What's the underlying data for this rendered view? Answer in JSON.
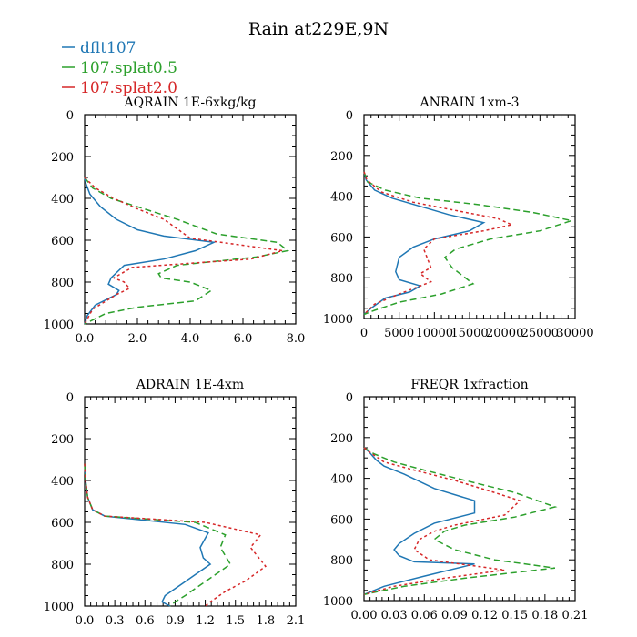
{
  "figure": {
    "title": "Rain at229E,9N"
  },
  "legend": [
    {
      "label": "dflt107",
      "color": "#1f77b4",
      "dash": "solid"
    },
    {
      "label": "107.splat0.5",
      "color": "#2ca02c",
      "dash": "dashed"
    },
    {
      "label": "107.splat2.0",
      "color": "#d62728",
      "dash": "dotted"
    }
  ],
  "chart_data": [
    {
      "type": "line",
      "title": "AQRAIN  1E-6xkg/kg",
      "xlim": [
        0,
        8
      ],
      "ylim": [
        0,
        1000
      ],
      "xticks": [
        0,
        2,
        4,
        6,
        8
      ],
      "xtick_labels": [
        "0.0",
        "2.0",
        "4.0",
        "6.0",
        "8.0"
      ],
      "yticks": [
        0,
        200,
        400,
        600,
        800,
        1000
      ],
      "ytick_labels": [
        "0",
        "200",
        "400",
        "600",
        "800",
        "1000"
      ],
      "series": [
        {
          "name": "dflt107",
          "x": [
            0,
            0.05,
            0.2,
            0.6,
            1.2,
            2.0,
            3.0,
            4.9,
            4.2,
            3.0,
            1.5,
            1.0,
            0.9,
            1.3,
            1.2,
            0.4,
            0.1,
            0
          ],
          "y": [
            300,
            330,
            380,
            440,
            500,
            550,
            580,
            610,
            650,
            690,
            720,
            780,
            810,
            840,
            860,
            910,
            960,
            1000
          ]
        },
        {
          "name": "107.splat0.5",
          "x": [
            0,
            0.3,
            1.0,
            2.0,
            3.5,
            5.0,
            7.3,
            7.7,
            6.5,
            3.5,
            2.8,
            2.9,
            4.0,
            4.8,
            4.2,
            2.0,
            0.8,
            0
          ],
          "y": [
            300,
            350,
            400,
            440,
            500,
            570,
            610,
            650,
            680,
            720,
            760,
            780,
            800,
            840,
            890,
            920,
            950,
            1000
          ]
        },
        {
          "name": "107.splat2.0",
          "x": [
            0,
            0.4,
            1.1,
            2.0,
            3.0,
            4.0,
            7.5,
            6.3,
            4.0,
            1.8,
            1.1,
            1.5,
            1.7,
            1.2,
            0.3,
            0
          ],
          "y": [
            300,
            350,
            400,
            450,
            500,
            590,
            650,
            690,
            710,
            730,
            780,
            800,
            830,
            860,
            930,
            1000
          ]
        }
      ]
    },
    {
      "type": "line",
      "title": "ANRAIN  1xm-3",
      "xlim": [
        0,
        30000
      ],
      "ylim": [
        0,
        1000
      ],
      "xticks": [
        0,
        5000,
        10000,
        15000,
        20000,
        25000,
        30000
      ],
      "xtick_labels": [
        "0",
        "5000",
        "10000",
        "15000",
        "20000",
        "25000",
        "30000"
      ],
      "yticks": [
        0,
        200,
        400,
        600,
        800,
        1000
      ],
      "ytick_labels": [
        "0",
        "200",
        "400",
        "600",
        "800",
        "1000"
      ],
      "series": [
        {
          "name": "dflt107",
          "x": [
            0,
            300,
            1500,
            4000,
            8000,
            12000,
            17000,
            15000,
            10000,
            7000,
            5000,
            4500,
            5000,
            8000,
            6500,
            3000,
            1000,
            0
          ],
          "y": [
            280,
            320,
            370,
            410,
            450,
            490,
            530,
            570,
            610,
            650,
            700,
            770,
            810,
            840,
            870,
            900,
            950,
            980
          ]
        },
        {
          "name": "107.splat0.5",
          "x": [
            0,
            500,
            3000,
            8000,
            16000,
            24000,
            29500,
            25000,
            18000,
            13000,
            11500,
            12500,
            15500,
            11000,
            5000,
            1500,
            0
          ],
          "y": [
            280,
            330,
            370,
            410,
            440,
            480,
            520,
            570,
            610,
            660,
            700,
            750,
            830,
            880,
            920,
            960,
            980
          ]
        },
        {
          "name": "107.splat2.0",
          "x": [
            0,
            400,
            2500,
            7000,
            13000,
            19000,
            21000,
            17000,
            10000,
            8500,
            9500,
            8000,
            9500,
            5000,
            1500,
            0
          ],
          "y": [
            280,
            320,
            380,
            430,
            470,
            510,
            540,
            570,
            610,
            660,
            750,
            780,
            820,
            880,
            930,
            980
          ]
        }
      ]
    },
    {
      "type": "line",
      "title": "ADRAIN  1E-4xm",
      "xlim": [
        0,
        2.1
      ],
      "ylim": [
        0,
        1000
      ],
      "xticks": [
        0,
        0.3,
        0.6,
        0.9,
        1.2,
        1.5,
        1.8,
        2.1
      ],
      "xtick_labels": [
        "0.0",
        "0.3",
        "0.6",
        "0.9",
        "1.2",
        "1.5",
        "1.8",
        "2.1"
      ],
      "yticks": [
        0,
        200,
        400,
        600,
        800,
        1000
      ],
      "ytick_labels": [
        "0",
        "200",
        "400",
        "600",
        "800",
        "1000"
      ],
      "series": [
        {
          "name": "dflt107",
          "x": [
            0,
            0.01,
            0.03,
            0.08,
            0.2,
            1.0,
            1.23,
            1.15,
            1.18,
            1.25,
            1.1,
            0.95,
            0.8,
            0.77,
            0.85
          ],
          "y": [
            320,
            400,
            480,
            540,
            570,
            610,
            650,
            720,
            770,
            800,
            850,
            900,
            950,
            980,
            1000
          ]
        },
        {
          "name": "107.splat0.5",
          "x": [
            0,
            0.01,
            0.03,
            0.08,
            0.2,
            1.1,
            1.4,
            1.35,
            1.45,
            1.3,
            1.15,
            1.0,
            0.9,
            0.85
          ],
          "y": [
            320,
            400,
            480,
            540,
            570,
            600,
            660,
            720,
            800,
            850,
            900,
            950,
            980,
            1000
          ]
        },
        {
          "name": "107.splat2.0",
          "x": [
            0,
            0.01,
            0.03,
            0.08,
            0.2,
            1.2,
            1.75,
            1.65,
            1.8,
            1.6,
            1.4,
            1.25,
            1.2
          ],
          "y": [
            320,
            400,
            480,
            540,
            570,
            600,
            660,
            720,
            810,
            880,
            930,
            980,
            1000
          ]
        }
      ]
    },
    {
      "type": "line",
      "title": "FREQR  1xfraction",
      "xlim": [
        0,
        0.21
      ],
      "ylim": [
        0,
        1000
      ],
      "xticks": [
        0,
        0.03,
        0.06,
        0.09,
        0.12,
        0.15,
        0.18,
        0.21
      ],
      "xtick_labels": [
        "0.00",
        "0.03",
        "0.06",
        "0.09",
        "0.12",
        "0.15",
        "0.18",
        "0.21"
      ],
      "yticks": [
        0,
        200,
        400,
        600,
        800,
        1000
      ],
      "ytick_labels": [
        "0",
        "200",
        "400",
        "600",
        "800",
        "1000"
      ],
      "series": [
        {
          "name": "dflt107",
          "x": [
            0,
            0.005,
            0.012,
            0.02,
            0.04,
            0.07,
            0.11,
            0.11,
            0.07,
            0.05,
            0.035,
            0.03,
            0.035,
            0.05,
            0.11,
            0.06,
            0.02,
            0
          ],
          "y": [
            250,
            270,
            310,
            340,
            380,
            450,
            510,
            570,
            620,
            670,
            720,
            750,
            780,
            810,
            820,
            880,
            930,
            970
          ]
        },
        {
          "name": "107.splat0.5",
          "x": [
            0,
            0.01,
            0.03,
            0.06,
            0.1,
            0.15,
            0.19,
            0.15,
            0.1,
            0.08,
            0.07,
            0.09,
            0.13,
            0.19,
            0.1,
            0.04,
            0
          ],
          "y": [
            250,
            280,
            320,
            360,
            410,
            470,
            540,
            590,
            630,
            660,
            700,
            750,
            800,
            840,
            890,
            930,
            970
          ]
        },
        {
          "name": "107.splat2.0",
          "x": [
            0,
            0.008,
            0.02,
            0.05,
            0.09,
            0.13,
            0.155,
            0.14,
            0.09,
            0.07,
            0.055,
            0.05,
            0.065,
            0.14,
            0.08,
            0.03,
            0
          ],
          "y": [
            250,
            280,
            320,
            360,
            410,
            470,
            510,
            580,
            630,
            660,
            700,
            750,
            800,
            850,
            890,
            930,
            970
          ]
        }
      ]
    }
  ]
}
